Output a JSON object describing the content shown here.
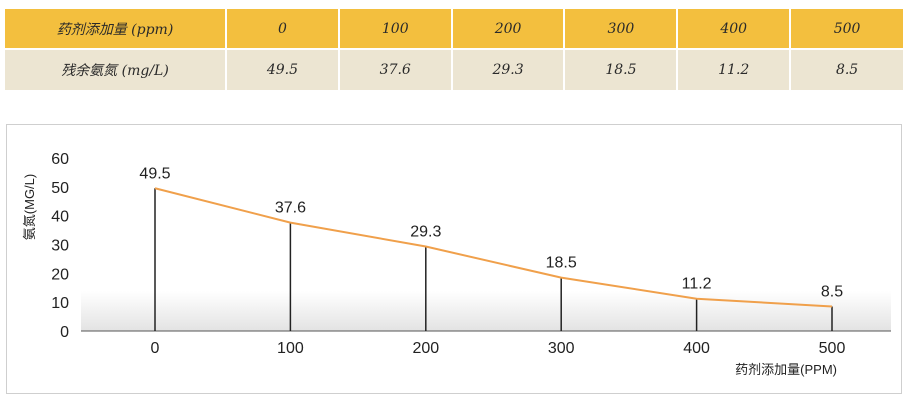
{
  "table": {
    "dose_label": "药剂添加量 (ppm)",
    "residual_label": "残余氨氮 (mg/L)",
    "dose_values": [
      "0",
      "100",
      "200",
      "300",
      "400",
      "500"
    ],
    "residual_values": [
      "49.5",
      "37.6",
      "29.3",
      "18.5",
      "11.2",
      "8.5"
    ]
  },
  "colors": {
    "header_row": "#f3bf3e",
    "data_row": "#ece5d2",
    "line": "#f0a04b",
    "drop_line": "#222222"
  },
  "chart_data": {
    "type": "line",
    "x": [
      0,
      100,
      200,
      300,
      400,
      500
    ],
    "series": [
      {
        "values": [
          49.5,
          37.6,
          29.3,
          18.5,
          11.2,
          8.5
        ]
      }
    ],
    "data_labels": [
      "49.5",
      "37.6",
      "29.3",
      "18.5",
      "11.2",
      "8.5"
    ],
    "xlabel": "药剂添加量(PPM)",
    "ylabel": "氨氮(MG/L)",
    "xticks": [
      "0",
      "100",
      "200",
      "300",
      "400",
      "500"
    ],
    "yticks": [
      "0",
      "10",
      "20",
      "30",
      "40",
      "50",
      "60"
    ],
    "xlim": [
      0,
      500
    ],
    "ylim": [
      0,
      60
    ],
    "grid": false,
    "drop_lines": true
  }
}
